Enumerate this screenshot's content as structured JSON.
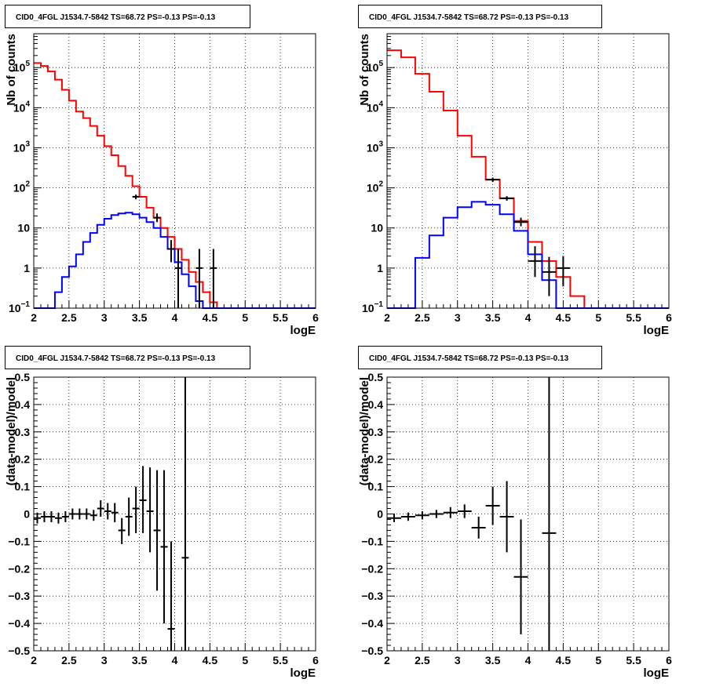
{
  "colors": {
    "data": "#000000",
    "total_model": "#ff0000",
    "source_model": "#0000ff",
    "grid": "#000000"
  },
  "chart_data": [
    {
      "type": "line",
      "title": "CID0_4FGL J1534.7-5842 TS=68.72 PS=-0.13 PS=-0.13",
      "xlabel": "logE",
      "ylabel": "Nb of counts",
      "xlim": [
        2,
        6
      ],
      "ylim": [
        0.1,
        700000
      ],
      "ylog": true,
      "grid": true,
      "xticks": [
        "2",
        "2.5",
        "3",
        "3.5",
        "4",
        "4.5",
        "5",
        "5.5",
        "6"
      ],
      "yticks": [
        {
          "v": 0.1,
          "t": "10",
          "e": "−1"
        },
        {
          "v": 1,
          "t": "1"
        },
        {
          "v": 10,
          "t": "10"
        },
        {
          "v": 100,
          "t": "10",
          "e": "2"
        },
        {
          "v": 1000,
          "t": "10",
          "e": "3"
        },
        {
          "v": 10000,
          "t": "10",
          "e": "4"
        },
        {
          "v": 100000,
          "t": "10",
          "e": "5"
        }
      ],
      "bin_edges": [
        2.0,
        2.1,
        2.2,
        2.3,
        2.4,
        2.5,
        2.6,
        2.7,
        2.8,
        2.9,
        3.0,
        3.1,
        3.2,
        3.3,
        3.4,
        3.5,
        3.6,
        3.7,
        3.8,
        3.9,
        4.0,
        4.1,
        4.2,
        4.3,
        4.4,
        4.5,
        4.6,
        4.7,
        4.8,
        4.9,
        5.0,
        5.1,
        5.2,
        5.3,
        5.4,
        5.5,
        5.6,
        5.7,
        5.8,
        5.9,
        6.0
      ],
      "series": [
        {
          "values": [
            130000,
            110000,
            80000,
            50000,
            28000,
            15000,
            8000,
            5500,
            3500,
            2000,
            1100,
            650,
            350,
            200,
            110,
            60,
            32,
            18,
            10,
            6,
            3,
            1.6,
            0.8,
            0.45,
            0.25,
            0.14,
            0.1,
            0.1,
            0.1,
            0.1,
            0.1,
            0.1,
            0.1,
            0.1,
            0.1,
            0.1,
            0.1,
            0.1,
            0.1,
            0.1
          ]
        },
        {
          "values": [
            0.1,
            0.1,
            0.1,
            0.25,
            0.6,
            1.1,
            2.2,
            4.5,
            7.5,
            12,
            17,
            21,
            23,
            24,
            22,
            18,
            14,
            10,
            6,
            3,
            1.4,
            0.7,
            0.35,
            0.15,
            0.1,
            0.1,
            0.1,
            0.1,
            0.1,
            0.1,
            0.1,
            0.1,
            0.1,
            0.1,
            0.1,
            0.1,
            0.1,
            0.1,
            0.1,
            0.1
          ]
        }
      ],
      "points": [
        {
          "x": 3.45,
          "y": 60,
          "xerr": 0.05,
          "lo": 52,
          "hi": 68
        },
        {
          "x": 3.75,
          "y": 18,
          "xerr": 0.05,
          "lo": 14,
          "hi": 23
        },
        {
          "x": 3.95,
          "y": 3,
          "xerr": 0.05,
          "lo": 1.4,
          "hi": 5
        },
        {
          "x": 4.05,
          "y": 1,
          "xerr": 0.05,
          "lo": 0.1,
          "hi": 3
        },
        {
          "x": 4.35,
          "y": 1,
          "xerr": 0.05,
          "lo": 0.1,
          "hi": 3
        },
        {
          "x": 4.55,
          "y": 1,
          "xerr": 0.05,
          "lo": 0.1,
          "hi": 3
        }
      ]
    },
    {
      "type": "line",
      "title": "CID0_4FGL J1534.7-5842 TS=68.72 PS=-0.13 PS=-0.13",
      "xlabel": "logE",
      "ylabel": "Nb of counts",
      "xlim": [
        2,
        6
      ],
      "ylim": [
        0.1,
        700000
      ],
      "ylog": true,
      "grid": true,
      "xticks": [
        "2",
        "2.5",
        "3",
        "3.5",
        "4",
        "4.5",
        "5",
        "5.5",
        "6"
      ],
      "yticks": [
        {
          "v": 0.1,
          "t": "10",
          "e": "−1"
        },
        {
          "v": 1,
          "t": "1"
        },
        {
          "v": 10,
          "t": "10"
        },
        {
          "v": 100,
          "t": "10",
          "e": "2"
        },
        {
          "v": 1000,
          "t": "10",
          "e": "3"
        },
        {
          "v": 10000,
          "t": "10",
          "e": "4"
        },
        {
          "v": 100000,
          "t": "10",
          "e": "5"
        }
      ],
      "bin_edges": [
        2.0,
        2.2,
        2.4,
        2.6,
        2.8,
        3.0,
        3.2,
        3.4,
        3.6,
        3.8,
        4.0,
        4.2,
        4.4,
        4.6,
        4.8,
        5.0,
        5.2,
        5.4,
        5.6,
        5.8,
        6.0
      ],
      "series": [
        {
          "values": [
            270000,
            180000,
            70000,
            25000,
            8500,
            2000,
            600,
            160,
            55,
            15,
            4.5,
            1.5,
            0.6,
            0.2,
            0.1,
            0.1,
            0.1,
            0.1,
            0.1,
            0.1
          ]
        },
        {
          "values": [
            0.1,
            0.1,
            1.8,
            6.5,
            18,
            33,
            45,
            38,
            22,
            8.5,
            2.2,
            0.5,
            0.1,
            0.1,
            0.1,
            0.1,
            0.1,
            0.1,
            0.1,
            0.1
          ]
        }
      ],
      "points": [
        {
          "x": 3.5,
          "y": 160,
          "xerr": 0.1,
          "lo": 140,
          "hi": 180
        },
        {
          "x": 3.7,
          "y": 55,
          "xerr": 0.1,
          "lo": 48,
          "hi": 62
        },
        {
          "x": 3.9,
          "y": 14,
          "xerr": 0.1,
          "lo": 11,
          "hi": 18
        },
        {
          "x": 4.1,
          "y": 1.5,
          "xerr": 0.1,
          "lo": 0.6,
          "hi": 3.5
        },
        {
          "x": 4.3,
          "y": 0.8,
          "xerr": 0.1,
          "lo": 0.2,
          "hi": 1.9
        },
        {
          "x": 4.5,
          "y": 1,
          "xerr": 0.1,
          "lo": 0.35,
          "hi": 2
        }
      ]
    },
    {
      "type": "scatter",
      "title": "CID0_4FGL J1534.7-5842 TS=68.72 PS=-0.13 PS=-0.13",
      "xlabel": "logE",
      "ylabel": "(data-model)/model",
      "xlim": [
        2,
        6
      ],
      "ylim": [
        -0.5,
        0.5
      ],
      "ylog": false,
      "grid": true,
      "xticks": [
        "2",
        "2.5",
        "3",
        "3.5",
        "4",
        "4.5",
        "5",
        "5.5",
        "6"
      ],
      "yticks": [
        {
          "v": -0.5,
          "t": "−0.5"
        },
        {
          "v": -0.4,
          "t": "−0.4"
        },
        {
          "v": -0.3,
          "t": "−0.3"
        },
        {
          "v": -0.2,
          "t": "−0.2"
        },
        {
          "v": -0.1,
          "t": "−0.1"
        },
        {
          "v": 0,
          "t": "0"
        },
        {
          "v": 0.1,
          "t": "0.1"
        },
        {
          "v": 0.2,
          "t": "0.2"
        },
        {
          "v": 0.3,
          "t": "0.3"
        },
        {
          "v": 0.4,
          "t": "0.4"
        },
        {
          "v": 0.5,
          "t": "0.5"
        }
      ],
      "points": [
        {
          "x": 2.05,
          "y": -0.015,
          "xerr": 0.05,
          "lo": -0.035,
          "hi": 0.005
        },
        {
          "x": 2.15,
          "y": -0.01,
          "xerr": 0.05,
          "lo": -0.03,
          "hi": 0.01
        },
        {
          "x": 2.25,
          "y": -0.01,
          "xerr": 0.05,
          "lo": -0.03,
          "hi": 0.01
        },
        {
          "x": 2.35,
          "y": -0.015,
          "xerr": 0.05,
          "lo": -0.035,
          "hi": 0.005
        },
        {
          "x": 2.45,
          "y": -0.01,
          "xerr": 0.05,
          "lo": -0.03,
          "hi": 0.01
        },
        {
          "x": 2.55,
          "y": 0.0,
          "xerr": 0.05,
          "lo": -0.02,
          "hi": 0.02
        },
        {
          "x": 2.65,
          "y": 0.0,
          "xerr": 0.05,
          "lo": -0.02,
          "hi": 0.02
        },
        {
          "x": 2.75,
          "y": 0.0,
          "xerr": 0.05,
          "lo": -0.02,
          "hi": 0.02
        },
        {
          "x": 2.85,
          "y": -0.005,
          "xerr": 0.05,
          "lo": -0.025,
          "hi": 0.015
        },
        {
          "x": 2.95,
          "y": 0.02,
          "xerr": 0.05,
          "lo": -0.01,
          "hi": 0.05
        },
        {
          "x": 3.05,
          "y": 0.01,
          "xerr": 0.05,
          "lo": -0.02,
          "hi": 0.04
        },
        {
          "x": 3.15,
          "y": 0.005,
          "xerr": 0.05,
          "lo": -0.03,
          "hi": 0.04
        },
        {
          "x": 3.25,
          "y": -0.06,
          "xerr": 0.05,
          "lo": -0.11,
          "hi": -0.015
        },
        {
          "x": 3.35,
          "y": -0.01,
          "xerr": 0.05,
          "lo": -0.08,
          "hi": 0.06
        },
        {
          "x": 3.45,
          "y": 0.02,
          "xerr": 0.05,
          "lo": -0.07,
          "hi": 0.1
        },
        {
          "x": 3.55,
          "y": 0.05,
          "xerr": 0.05,
          "lo": -0.07,
          "hi": 0.175
        },
        {
          "x": 3.65,
          "y": 0.01,
          "xerr": 0.05,
          "lo": -0.14,
          "hi": 0.17
        },
        {
          "x": 3.75,
          "y": -0.06,
          "xerr": 0.05,
          "lo": -0.28,
          "hi": 0.16
        },
        {
          "x": 3.85,
          "y": -0.12,
          "xerr": 0.05,
          "lo": -0.4,
          "hi": 0.16
        },
        {
          "x": 3.95,
          "y": -0.42,
          "xerr": 0.05,
          "lo": -0.5,
          "hi": -0.1
        },
        {
          "x": 4.15,
          "y": -0.16,
          "xerr": 0.05,
          "lo": -0.5,
          "hi": 0.5
        }
      ]
    },
    {
      "type": "scatter",
      "title": "CID0_4FGL J1534.7-5842 TS=68.72 PS=-0.13 PS=-0.13",
      "xlabel": "logE",
      "ylabel": "(data-model)/model",
      "xlim": [
        2,
        6
      ],
      "ylim": [
        -0.5,
        0.5
      ],
      "ylog": false,
      "grid": true,
      "xticks": [
        "2",
        "2.5",
        "3",
        "3.5",
        "4",
        "4.5",
        "5",
        "5.5",
        "6"
      ],
      "yticks": [
        {
          "v": -0.5,
          "t": "−0.5"
        },
        {
          "v": -0.4,
          "t": "−0.4"
        },
        {
          "v": -0.3,
          "t": "−0.3"
        },
        {
          "v": -0.2,
          "t": "−0.2"
        },
        {
          "v": -0.1,
          "t": "−0.1"
        },
        {
          "v": 0,
          "t": "0"
        },
        {
          "v": 0.1,
          "t": "0.1"
        },
        {
          "v": 0.2,
          "t": "0.2"
        },
        {
          "v": 0.3,
          "t": "0.3"
        },
        {
          "v": 0.4,
          "t": "0.4"
        },
        {
          "v": 0.5,
          "t": "0.5"
        }
      ],
      "points": [
        {
          "x": 2.1,
          "y": -0.015,
          "xerr": 0.1,
          "lo": -0.03,
          "hi": 0.0
        },
        {
          "x": 2.3,
          "y": -0.01,
          "xerr": 0.1,
          "lo": -0.025,
          "hi": 0.005
        },
        {
          "x": 2.5,
          "y": -0.005,
          "xerr": 0.1,
          "lo": -0.02,
          "hi": 0.01
        },
        {
          "x": 2.7,
          "y": 0.0,
          "xerr": 0.1,
          "lo": -0.015,
          "hi": 0.015
        },
        {
          "x": 2.9,
          "y": 0.005,
          "xerr": 0.1,
          "lo": -0.015,
          "hi": 0.025
        },
        {
          "x": 3.1,
          "y": 0.01,
          "xerr": 0.1,
          "lo": -0.015,
          "hi": 0.035
        },
        {
          "x": 3.3,
          "y": -0.05,
          "xerr": 0.1,
          "lo": -0.09,
          "hi": -0.01
        },
        {
          "x": 3.5,
          "y": 0.03,
          "xerr": 0.1,
          "lo": -0.04,
          "hi": 0.1
        },
        {
          "x": 3.7,
          "y": -0.01,
          "xerr": 0.1,
          "lo": -0.14,
          "hi": 0.12
        },
        {
          "x": 3.9,
          "y": -0.23,
          "xerr": 0.1,
          "lo": -0.44,
          "hi": -0.02
        },
        {
          "x": 4.3,
          "y": -0.07,
          "xerr": 0.1,
          "lo": -0.5,
          "hi": 0.5
        }
      ]
    }
  ]
}
